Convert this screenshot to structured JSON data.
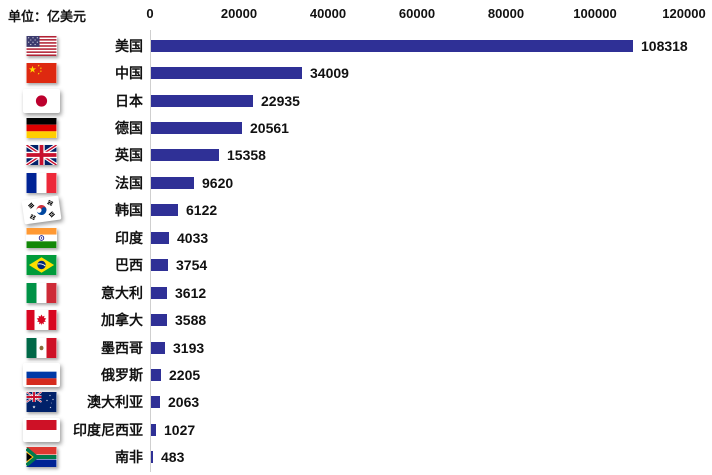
{
  "unit_label": "单位：亿美元",
  "chart_data": {
    "type": "bar",
    "orientation": "horizontal",
    "title": "",
    "unit": "亿美元",
    "xlim": [
      0,
      120000
    ],
    "x_ticks": [
      0,
      20000,
      40000,
      60000,
      80000,
      100000,
      120000
    ],
    "grid": "off",
    "bar_color": "#2F3096",
    "categories": [
      "美国",
      "中国",
      "日本",
      "德国",
      "英国",
      "法国",
      "韩国",
      "印度",
      "巴西",
      "意大利",
      "加拿大",
      "墨西哥",
      "俄罗斯",
      "澳大利亚",
      "印度尼西亚",
      "南非"
    ],
    "values": [
      108318,
      34009,
      22935,
      20561,
      15358,
      9620,
      6122,
      4033,
      3754,
      3612,
      3588,
      3193,
      2205,
      2063,
      1027,
      483
    ],
    "flag_icons": [
      "flag-usa-icon",
      "flag-china-icon",
      "flag-japan-icon",
      "flag-germany-icon",
      "flag-uk-icon",
      "flag-france-icon",
      "flag-south-korea-icon",
      "flag-india-icon",
      "flag-brazil-icon",
      "flag-italy-icon",
      "flag-canada-icon",
      "flag-mexico-icon",
      "flag-russia-icon",
      "flag-australia-icon",
      "flag-indonesia-icon",
      "flag-south-africa-icon"
    ]
  }
}
